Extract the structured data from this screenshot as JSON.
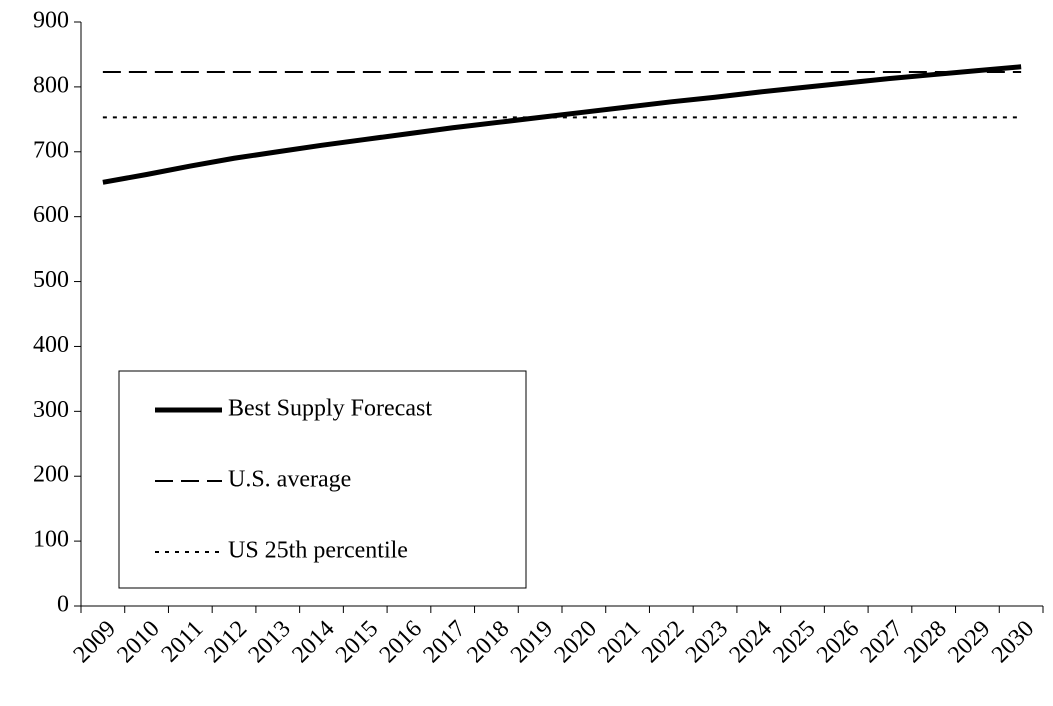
{
  "chart_data": {
    "type": "line",
    "categories": [
      "2009",
      "2010",
      "2011",
      "2012",
      "2013",
      "2014",
      "2015",
      "2016",
      "2017",
      "2018",
      "2019",
      "2020",
      "2021",
      "2022",
      "2023",
      "2024",
      "2025",
      "2026",
      "2027",
      "2028",
      "2029",
      "2030"
    ],
    "series": [
      {
        "name": "Best Supply Forecast",
        "color": "#000000",
        "dash": "solid",
        "width": 5,
        "values": [
          653,
          665,
          678,
          690,
          700,
          710,
          719,
          728,
          737,
          745,
          753,
          761,
          769,
          777,
          784,
          792,
          799,
          806,
          813,
          819,
          825,
          831
        ]
      },
      {
        "name": "U.S. average",
        "color": "#000000",
        "dash": "dashed",
        "width": 2,
        "values": [
          823,
          823,
          823,
          823,
          823,
          823,
          823,
          823,
          823,
          823,
          823,
          823,
          823,
          823,
          823,
          823,
          823,
          823,
          823,
          823,
          823,
          823
        ]
      },
      {
        "name": "US 25th percentile",
        "color": "#000000",
        "dash": "dotted",
        "width": 2,
        "values": [
          753,
          753,
          753,
          753,
          753,
          753,
          753,
          753,
          753,
          753,
          753,
          753,
          753,
          753,
          753,
          753,
          753,
          753,
          753,
          753,
          753,
          753
        ]
      }
    ],
    "ylim": [
      0,
      900
    ],
    "yticks": [
      0,
      100,
      200,
      300,
      400,
      500,
      600,
      700,
      800,
      900
    ],
    "grid": false
  }
}
